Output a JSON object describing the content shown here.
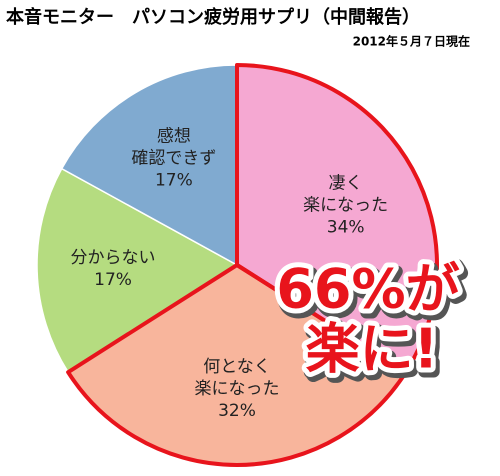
{
  "chart_data": {
    "type": "pie",
    "title": "本音モニター　パソコン疲労用サプリ（中間報告）",
    "subtitle": "2012年５月７日現在",
    "categories": [
      "凄く\n楽になった",
      "何となく\n楽になった",
      "分からない",
      "感想\n確認できず"
    ],
    "values": [
      34,
      32,
      17,
      17
    ],
    "value_labels": [
      "34%",
      "32%",
      "17%",
      "17%"
    ],
    "colors": [
      "#f5a8d2",
      "#f8b59c",
      "#b5dc80",
      "#80aad0"
    ],
    "emphasis": [
      true,
      true,
      false,
      false
    ],
    "emphasis_color": "#e8141c",
    "annotation": [
      "66%が",
      "楽に!"
    ]
  }
}
